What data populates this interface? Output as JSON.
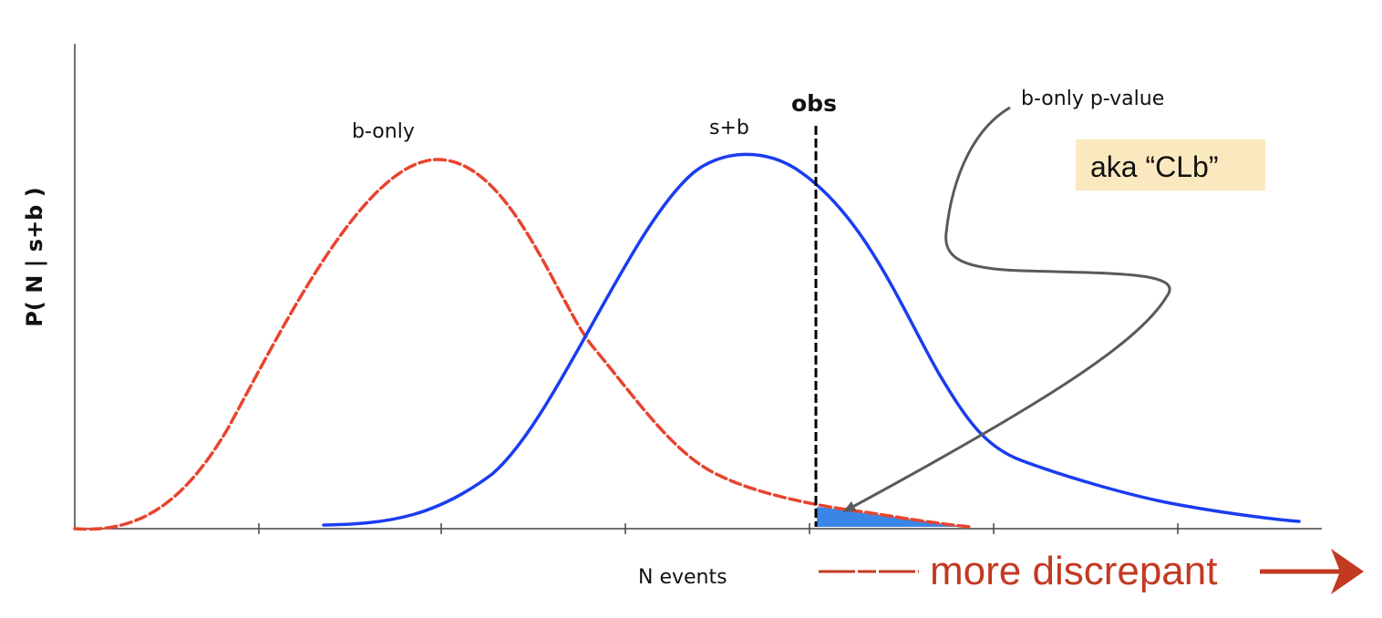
{
  "labels": {
    "y_axis": "P( N | s+b )",
    "x_axis": "N events",
    "b_only": "b-only",
    "s_plus_b": "s+b",
    "obs": "obs",
    "annotation": "b-only p-value",
    "aka": "aka “CLb”",
    "more_discrepant": "more discrepant"
  },
  "colors": {
    "b_only_curve": "#e8442e",
    "s_plus_b_curve": "#1a3df0",
    "obs_line": "#000000",
    "shaded_tail": "#3a86e6",
    "arrow": "#5a5a5a",
    "aka_box": "#fae9bf",
    "more_discrepant": "#c23a22",
    "axis": "#444444"
  },
  "icons": {
    "pointer": "curved-arrow-icon",
    "direction": "right-arrow-icon"
  }
}
